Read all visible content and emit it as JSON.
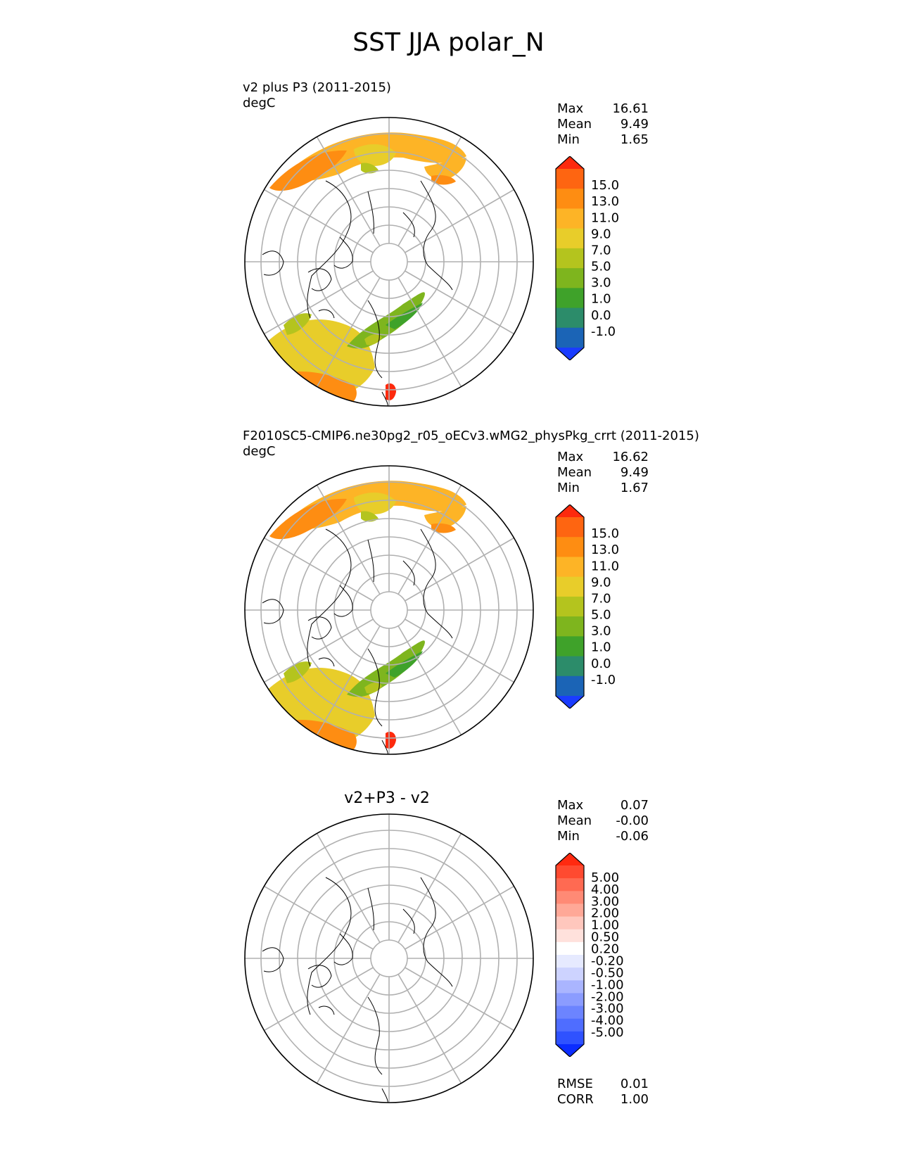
{
  "figure": {
    "title": "SST JJA polar_N"
  },
  "colors": {
    "land_outline": "#000000",
    "grid": "#b0b0b0",
    "sst_levels": [
      "#1a3cff",
      "#1b64b6",
      "#2c8c6a",
      "#3fa22a",
      "#7eb51e",
      "#b4c41e",
      "#e8cd2a",
      "#fdb426",
      "#fe8d12",
      "#fe6511",
      "#fd2a0d"
    ],
    "diff_levels": [
      "#0b2cff",
      "#2f52ff",
      "#4f6dff",
      "#6c84ff",
      "#8b9cff",
      "#aab5ff",
      "#cdd3ff",
      "#e6eaff",
      "#ffffff",
      "#ffe1dc",
      "#ffc7bd",
      "#ffa897",
      "#ff8a75",
      "#ff6a52",
      "#ff4a30",
      "#ff2a10"
    ]
  },
  "panels": [
    {
      "title": "v2 plus P3 (2011-2015)",
      "units": "degC",
      "stats": {
        "max_label": "Max",
        "max": "16.61",
        "mean_label": "Mean",
        "mean": "9.49",
        "min_label": "Min",
        "min": "1.65"
      },
      "colorbar_ticks": [
        "15.0",
        "13.0",
        "11.0",
        "9.0",
        "7.0",
        "5.0",
        "3.0",
        "1.0",
        "0.0",
        "-1.0"
      ]
    },
    {
      "title": "F2010SC5-CMIP6.ne30pg2_r05_oECv3.wMG2_physPkg_crrt (2011-2015)",
      "units": "degC",
      "stats": {
        "max_label": "Max",
        "max": "16.62",
        "mean_label": "Mean",
        "mean": "9.49",
        "min_label": "Min",
        "min": "1.67"
      },
      "colorbar_ticks": [
        "15.0",
        "13.0",
        "11.0",
        "9.0",
        "7.0",
        "5.0",
        "3.0",
        "1.0",
        "0.0",
        "-1.0"
      ]
    },
    {
      "title": "v2+P3 - v2",
      "stats": {
        "max_label": "Max",
        "max": "0.07",
        "mean_label": "Mean",
        "mean": "-0.00",
        "min_label": "Min",
        "min": "-0.06",
        "rmse_label": "RMSE",
        "rmse": "0.01",
        "corr_label": "CORR",
        "corr": "1.00"
      },
      "colorbar_ticks": [
        "5.00",
        "4.00",
        "3.00",
        "2.00",
        "1.00",
        "0.50",
        "0.20",
        "-0.20",
        "-0.50",
        "-1.00",
        "-2.00",
        "-3.00",
        "-4.00",
        "-5.00"
      ]
    }
  ],
  "chart_data": [
    {
      "type": "polar_map",
      "projection": "north polar stereographic",
      "region": "polar_N",
      "title": "v2 plus P3 (2011-2015)",
      "variable": "SST",
      "season": "JJA",
      "units": "degC",
      "max": 16.61,
      "mean": 9.49,
      "min": 1.65,
      "colorbar_levels": [
        -1.0,
        0.0,
        1.0,
        3.0,
        5.0,
        7.0,
        9.0,
        11.0,
        13.0,
        15.0
      ],
      "extend": "both"
    },
    {
      "type": "polar_map",
      "projection": "north polar stereographic",
      "region": "polar_N",
      "title": "F2010SC5-CMIP6.ne30pg2_r05_oECv3.wMG2_physPkg_crrt (2011-2015)",
      "variable": "SST",
      "season": "JJA",
      "units": "degC",
      "max": 16.62,
      "mean": 9.49,
      "min": 1.67,
      "colorbar_levels": [
        -1.0,
        0.0,
        1.0,
        3.0,
        5.0,
        7.0,
        9.0,
        11.0,
        13.0,
        15.0
      ],
      "extend": "both"
    },
    {
      "type": "polar_map",
      "projection": "north polar stereographic",
      "region": "polar_N",
      "title": "v2+P3 - v2",
      "max": 0.07,
      "mean": -0.0,
      "min": -0.06,
      "rmse": 0.01,
      "corr": 1.0,
      "colorbar_levels": [
        -5.0,
        -4.0,
        -3.0,
        -2.0,
        -1.0,
        -0.5,
        -0.2,
        0.2,
        0.5,
        1.0,
        2.0,
        3.0,
        4.0,
        5.0
      ],
      "extend": "both"
    }
  ]
}
